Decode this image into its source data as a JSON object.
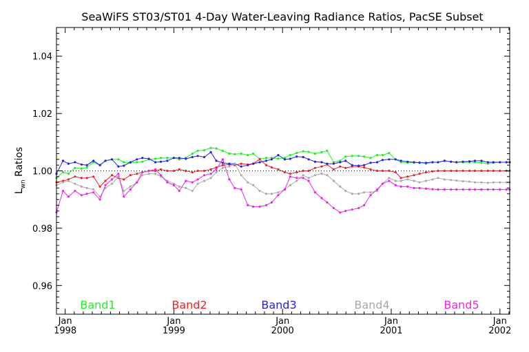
{
  "chart_data": {
    "type": "line",
    "title": "SeaWiFS ST03/ST01 4-Day Water-Leaving Radiance Ratios, PacSE Subset",
    "xlabel": "",
    "ylabel_main": "L",
    "ylabel_sub": "wn",
    "ylabel_rest": " Ratios",
    "xlim": [
      1997.92,
      2002.09
    ],
    "ylim": [
      0.95,
      1.05
    ],
    "yticks": [
      {
        "value": 0.96,
        "label": "0.96"
      },
      {
        "value": 0.98,
        "label": "0.98"
      },
      {
        "value": 1.0,
        "label": "1.00"
      },
      {
        "value": 1.02,
        "label": "1.02"
      },
      {
        "value": 1.04,
        "label": "1.04"
      }
    ],
    "xticks": [
      {
        "value": 1998.0,
        "month": "Jan",
        "year": "1998"
      },
      {
        "value": 1999.0,
        "month": "Jan",
        "year": "1999"
      },
      {
        "value": 2000.0,
        "month": "Jan",
        "year": "2000"
      },
      {
        "value": 2001.0,
        "month": "Jan",
        "year": "2001"
      },
      {
        "value": 2002.0,
        "month": "Jan",
        "year": "2002"
      }
    ],
    "reference_line": 1.0,
    "x": [
      1997.92,
      1997.98,
      1998.03,
      1998.09,
      1998.15,
      1998.2,
      1998.26,
      1998.32,
      1998.37,
      1998.43,
      1998.49,
      1998.54,
      1998.6,
      1998.66,
      1998.71,
      1998.77,
      1998.83,
      1998.88,
      1998.94,
      1999.0,
      1999.05,
      1999.11,
      1999.17,
      1999.22,
      1999.28,
      1999.34,
      1999.39,
      1999.45,
      1999.51,
      1999.56,
      1999.62,
      1999.68,
      1999.73,
      1999.79,
      1999.85,
      1999.9,
      1999.96,
      2000.02,
      2000.07,
      2000.13,
      2000.19,
      2000.24,
      2000.3,
      2000.36,
      2000.41,
      2000.47,
      2000.53,
      2000.58,
      2000.64,
      2000.7,
      2000.75,
      2000.81,
      2000.87,
      2000.92,
      2000.98,
      2001.04,
      2001.09,
      2001.15,
      2001.21,
      2001.26,
      2001.32,
      2001.38,
      2001.43,
      2001.49,
      2001.55,
      2001.6,
      2001.66,
      2001.72,
      2001.77,
      2001.83,
      2001.89,
      2001.94,
      2002.0,
      2002.06,
      2002.09
    ],
    "series": [
      {
        "name": "Band1",
        "color": "#22ee22",
        "values": [
          0.9975,
          0.9995,
          0.999,
          1.001,
          1.0008,
          1.0012,
          1.003,
          1.002,
          1.0035,
          1.004,
          1.004,
          1.003,
          1.0028,
          1.003,
          1.0032,
          1.004,
          1.0042,
          1.0045,
          1.0045,
          1.0045,
          1.004,
          1.0045,
          1.006,
          1.007,
          1.0072,
          1.008,
          1.0078,
          1.007,
          1.006,
          1.0058,
          1.006,
          1.0055,
          1.006,
          1.0042,
          1.0045,
          1.0045,
          1.0042,
          1.0045,
          1.0055,
          1.0062,
          1.0068,
          1.0066,
          1.006,
          1.0065,
          1.007,
          1.003,
          1.0035,
          1.005,
          1.0052,
          1.0052,
          1.005,
          1.0045,
          1.0055,
          1.0055,
          1.0062,
          1.004,
          1.003,
          1.0028,
          1.0028,
          1.003,
          1.0025,
          1.003,
          1.003,
          1.0035,
          1.0032,
          1.003,
          1.003,
          1.003,
          1.003,
          1.0028,
          1.0025,
          1.0028,
          1.003,
          1.003,
          1.003
        ]
      },
      {
        "name": "Band2",
        "color": "#ee2222",
        "values": [
          0.996,
          0.9965,
          0.997,
          0.998,
          0.9975,
          0.9975,
          0.998,
          0.9945,
          0.9965,
          0.9985,
          0.9975,
          0.997,
          0.9985,
          0.999,
          0.9995,
          1.0,
          1.0,
          1.0005,
          1.0,
          1.0,
          1.0005,
          1.0,
          0.9995,
          1.0,
          1.0,
          1.0005,
          1.0012,
          1.002,
          1.0022,
          1.002,
          1.0025,
          1.0022,
          1.0025,
          1.004,
          1.002,
          1.0012,
          1.0005,
          0.9995,
          0.999,
          0.9995,
          1.0,
          1.0,
          1.001,
          1.0015,
          1.0022,
          1.0005,
          1.0015,
          1.001,
          1.0015,
          1.0015,
          1.0012,
          1.0005,
          1.0,
          1.0,
          1.0,
          0.9995,
          0.9975,
          0.998,
          0.9985,
          0.999,
          0.9995,
          0.9998,
          1.0,
          1.0,
          1.0,
          1.0,
          1.0,
          1.0,
          1.0,
          1.0,
          1.0,
          1.0,
          1.0,
          1.0,
          1.0
        ]
      },
      {
        "name": "Band3",
        "color": "#2222dd",
        "values": [
          0.999,
          1.0035,
          1.0025,
          1.003,
          1.0022,
          1.002,
          1.0035,
          1.002,
          1.0035,
          1.004,
          1.0015,
          1.0018,
          1.003,
          1.004,
          1.0045,
          1.0042,
          1.003,
          1.0032,
          1.0035,
          1.0045,
          1.0045,
          1.0042,
          1.0048,
          1.0052,
          1.0048,
          1.0065,
          1.0035,
          1.0028,
          1.0025,
          1.0025,
          1.0015,
          1.002,
          1.0025,
          1.003,
          1.0035,
          1.004,
          1.0055,
          1.004,
          1.0042,
          1.005,
          1.0048,
          1.004,
          1.0032,
          1.003,
          1.0025,
          1.0025,
          1.003,
          1.0035,
          1.002,
          1.0018,
          1.002,
          1.0028,
          1.003,
          1.0038,
          1.004,
          1.004,
          1.0035,
          1.0032,
          1.003,
          1.0028,
          1.0028,
          1.003,
          1.003,
          1.0035,
          1.0032,
          1.003,
          1.0032,
          1.0033,
          1.0035,
          1.0035,
          1.003,
          1.003,
          1.003,
          1.003,
          1.003
        ]
      },
      {
        "name": "Band4",
        "color": "#aaaaaa",
        "values": [
          0.995,
          0.996,
          0.9965,
          0.9955,
          0.9945,
          0.994,
          0.9935,
          0.991,
          0.994,
          0.9955,
          0.998,
          0.993,
          0.9945,
          0.996,
          0.9985,
          0.999,
          0.999,
          0.998,
          0.9965,
          0.9955,
          0.9945,
          0.994,
          0.993,
          0.9955,
          0.9965,
          0.9975,
          0.9995,
          1.001,
          1.0015,
          1.0025,
          0.9985,
          0.996,
          0.995,
          0.993,
          0.992,
          0.992,
          0.9925,
          0.9935,
          0.995,
          0.9965,
          0.9985,
          0.9975,
          0.9985,
          0.999,
          0.9985,
          0.9965,
          0.9945,
          0.993,
          0.992,
          0.992,
          0.9925,
          0.9925,
          0.993,
          0.9955,
          0.9975,
          0.9965,
          0.9965,
          0.997,
          0.9965,
          0.996,
          0.9965,
          0.997,
          0.9975,
          0.997,
          0.9968,
          0.9966,
          0.9964,
          0.9962,
          0.996,
          0.996,
          0.9958,
          0.996,
          0.996,
          0.996,
          0.996
        ]
      },
      {
        "name": "Band5",
        "color": "#ee22ee",
        "values": [
          0.9855,
          0.993,
          0.991,
          0.993,
          0.9915,
          0.992,
          0.9925,
          0.99,
          0.995,
          0.997,
          0.999,
          0.991,
          0.9935,
          0.996,
          0.9995,
          1.0,
          1.0005,
          0.9985,
          0.996,
          0.995,
          0.993,
          0.9965,
          0.996,
          0.997,
          0.9985,
          0.999,
          1.0005,
          1.004,
          0.997,
          0.994,
          0.9935,
          0.988,
          0.9875,
          0.9875,
          0.988,
          0.989,
          0.9915,
          0.9935,
          0.998,
          0.9975,
          0.9975,
          0.9965,
          0.9925,
          0.9905,
          0.989,
          0.987,
          0.9855,
          0.986,
          0.9865,
          0.987,
          0.988,
          0.9915,
          0.9935,
          0.9955,
          0.9965,
          0.995,
          0.9945,
          0.9945,
          0.994,
          0.994,
          0.9938,
          0.9936,
          0.9935,
          0.9935,
          0.9935,
          0.9935,
          0.9935,
          0.9935,
          0.9935,
          0.9935,
          0.9935,
          0.9935,
          0.9935,
          0.9935,
          0.9935
        ]
      }
    ],
    "legend": [
      {
        "label": "Band1",
        "color": "#22ee22"
      },
      {
        "label": "Band2",
        "color": "#ee2222"
      },
      {
        "label": "Band3",
        "color": "#2222dd"
      },
      {
        "label": "Band4",
        "color": "#aaaaaa"
      },
      {
        "label": "Band5",
        "color": "#ee22ee"
      }
    ]
  }
}
